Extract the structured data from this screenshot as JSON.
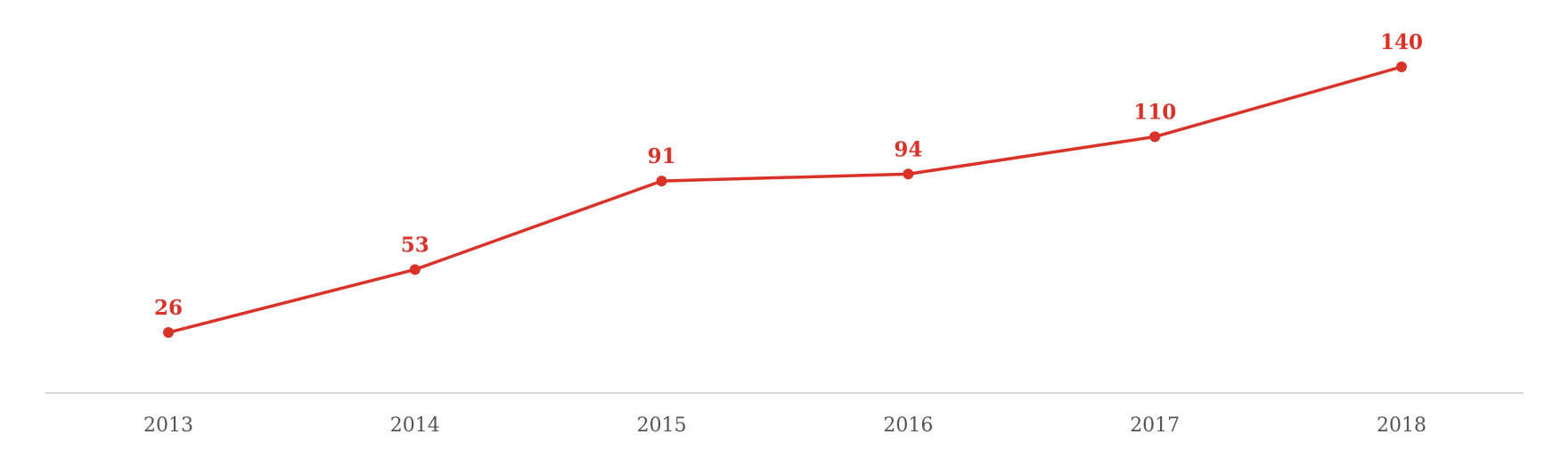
{
  "chart_data": {
    "type": "line",
    "categories": [
      "2013",
      "2014",
      "2015",
      "2016",
      "2017",
      "2018"
    ],
    "values": [
      26,
      53,
      91,
      94,
      110,
      140
    ],
    "color": "#d93329",
    "data_labels": true
  }
}
